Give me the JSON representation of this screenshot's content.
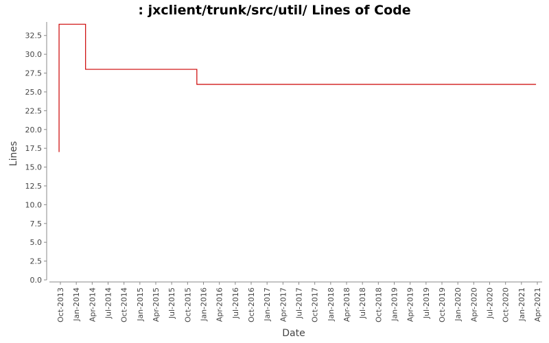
{
  "chart_data": {
    "type": "line",
    "title": ": jxclient/trunk/src/util/ Lines of Code",
    "xlabel": "Date",
    "ylabel": "Lines",
    "ylim": [
      0,
      34.3
    ],
    "yticks": [
      "0.0",
      "2.5",
      "5.0",
      "7.5",
      "10.0",
      "12.5",
      "15.0",
      "17.5",
      "20.0",
      "22.5",
      "25.0",
      "27.5",
      "30.0",
      "32.5"
    ],
    "xticks": [
      "Oct-2013",
      "Jan-2014",
      "Apr-2014",
      "Jul-2014",
      "Oct-2014",
      "Jan-2015",
      "Apr-2015",
      "Jul-2015",
      "Oct-2015",
      "Jan-2016",
      "Apr-2016",
      "Jul-2016",
      "Oct-2016",
      "Jan-2017",
      "Apr-2017",
      "Jul-2017",
      "Oct-2017",
      "Jan-2018",
      "Apr-2018",
      "Jul-2018",
      "Oct-2018",
      "Jan-2019",
      "Apr-2019",
      "Jul-2019",
      "Oct-2019",
      "Jan-2020",
      "Apr-2020",
      "Jul-2020",
      "Oct-2020",
      "Jan-2021",
      "Apr-2021"
    ],
    "step": true,
    "grid": false,
    "series": [
      {
        "color": "#cc0000",
        "x": [
          "Sep-2013",
          "Sep-2013",
          "Feb-2014",
          "Nov-2015",
          "Mar-2021"
        ],
        "y": [
          17,
          34,
          28,
          26,
          26
        ]
      }
    ]
  }
}
